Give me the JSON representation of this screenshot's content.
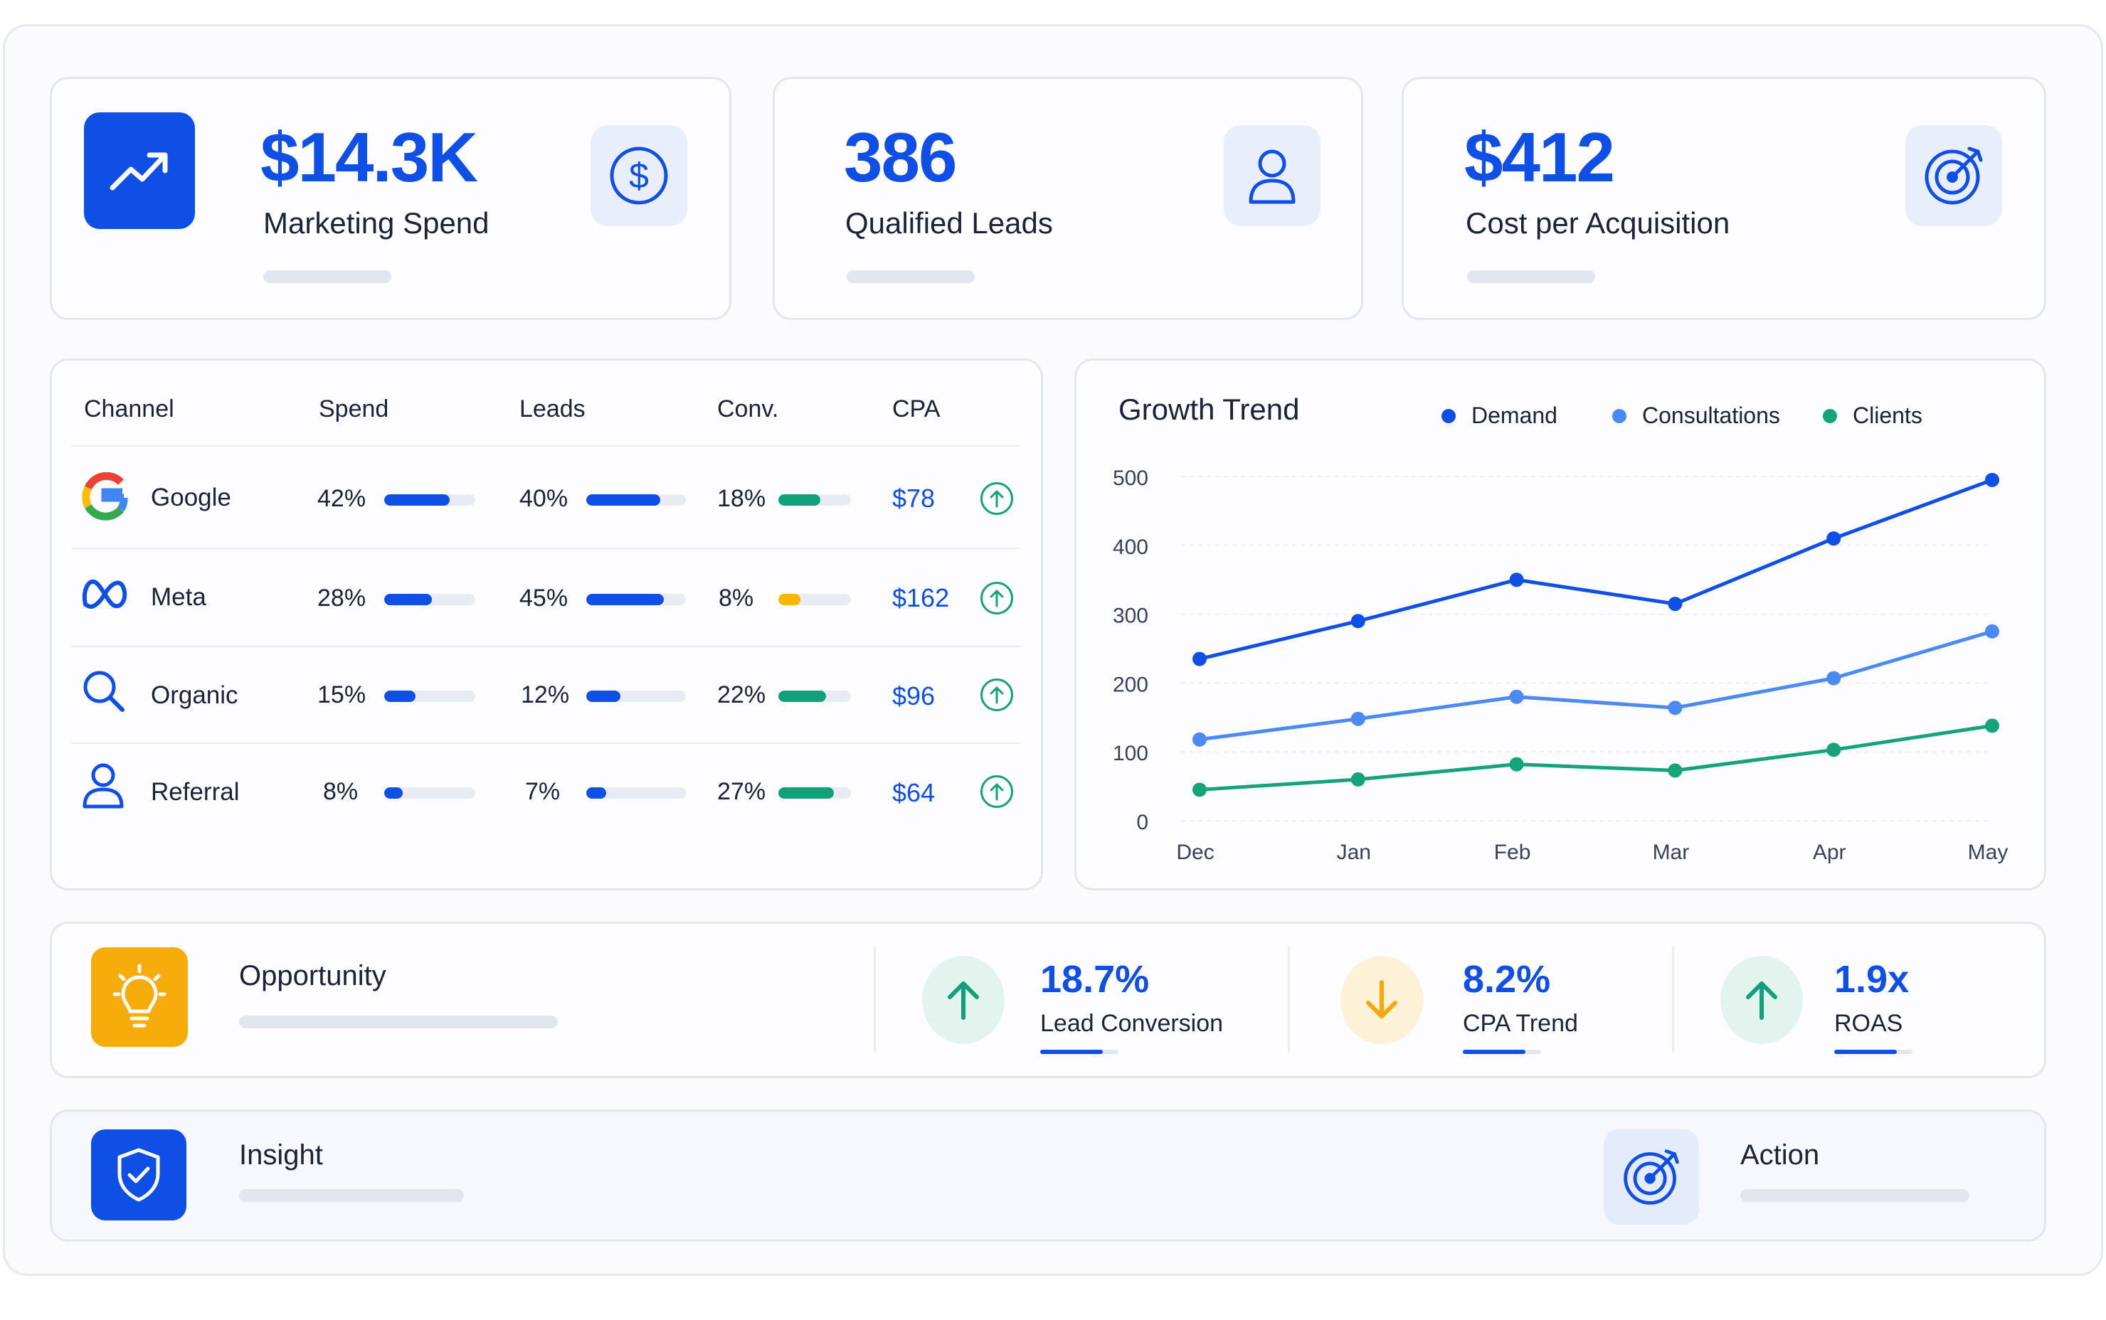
{
  "kpis": [
    {
      "value": "$14.3K",
      "label": "Marketing Spend",
      "icon": "dollar-icon"
    },
    {
      "value": "386",
      "label": "Qualified Leads",
      "icon": "user-icon"
    },
    {
      "value": "$412",
      "label": "Cost per Acquisition",
      "icon": "target-icon"
    }
  ],
  "table": {
    "headers": [
      "Channel",
      "Spend",
      "Leads",
      "Conv.",
      "CPA"
    ],
    "rows": [
      {
        "name": "Google",
        "icon": "google-icon",
        "spend": "42%",
        "spend_value": 0.72,
        "leads": "40%",
        "leads_value": 0.74,
        "conv": "18%",
        "conv_value": 0.58,
        "conv_color": "#11a07a",
        "cpa": "$78"
      },
      {
        "name": "Meta",
        "icon": "meta-icon",
        "spend": "28%",
        "spend_value": 0.52,
        "leads": "45%",
        "leads_value": 0.78,
        "conv": "8%",
        "conv_value": 0.3,
        "conv_color": "#f7b500",
        "cpa": "$162"
      },
      {
        "name": "Organic",
        "icon": "search-icon",
        "spend": "15%",
        "spend_value": 0.34,
        "leads": "12%",
        "leads_value": 0.34,
        "conv": "22%",
        "conv_value": 0.66,
        "conv_color": "#11a07a",
        "cpa": "$96"
      },
      {
        "name": "Referral",
        "icon": "user-icon",
        "spend": "8%",
        "spend_value": 0.2,
        "leads": "7%",
        "leads_value": 0.2,
        "conv": "27%",
        "conv_value": 0.76,
        "conv_color": "#11a07a",
        "cpa": "$64"
      }
    ]
  },
  "chart_data": {
    "type": "line",
    "title": "Growth Trend",
    "categories": [
      "Dec",
      "Jan",
      "Feb",
      "Mar",
      "Apr",
      "May"
    ],
    "yticks": [
      "500",
      "400",
      "300",
      "200",
      "100",
      "0"
    ],
    "ylim": [
      0,
      500
    ],
    "grid": true,
    "legend_position": "top",
    "series": [
      {
        "name": "Demand",
        "color": "#0f4fe6",
        "values": [
          235,
          290,
          350,
          315,
          410,
          495
        ]
      },
      {
        "name": "Consultations",
        "color": "#4b8af3",
        "values": [
          118,
          148,
          180,
          164,
          207,
          275
        ]
      },
      {
        "name": "Clients",
        "color": "#14a37a",
        "values": [
          45,
          60,
          82,
          73,
          103,
          138
        ]
      }
    ]
  },
  "opportunity": {
    "label": "Opportunity",
    "icon": "lightbulb-icon"
  },
  "metrics": [
    {
      "value": "18.7%",
      "label": "Lead Conversion",
      "direction": "up",
      "icon": "arrow-up-icon"
    },
    {
      "value": "8.2%",
      "label": "CPA Trend",
      "direction": "down",
      "icon": "arrow-down-icon"
    },
    {
      "value": "1.9x",
      "label": "ROAS",
      "direction": "up",
      "icon": "arrow-up-icon"
    }
  ],
  "insight": {
    "label": "Insight",
    "icon": "shield-check-icon"
  },
  "action": {
    "label": "Action",
    "icon": "target-icon"
  },
  "colors": {
    "accent": "#0f4fe6",
    "green": "#11a07a",
    "amber": "#f7b500"
  }
}
